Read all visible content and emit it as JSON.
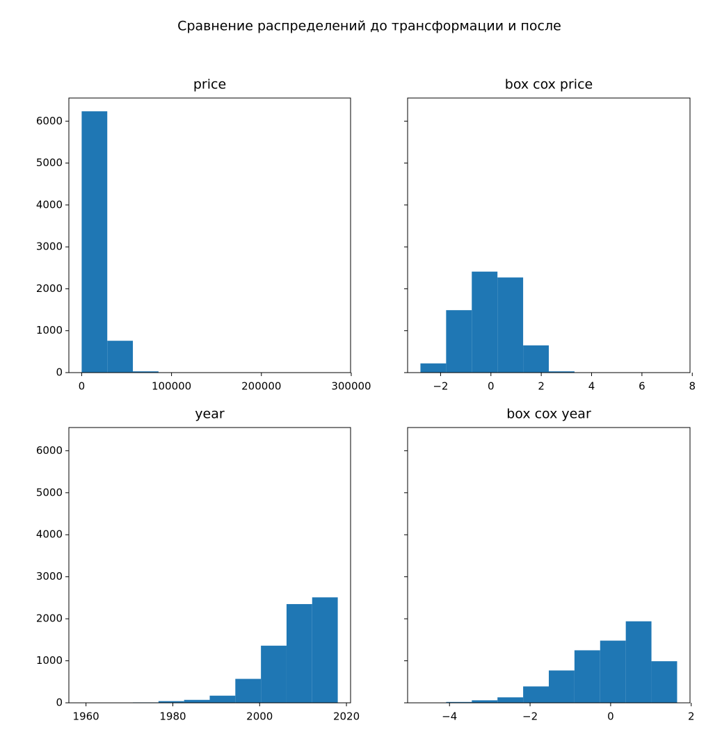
{
  "title": "Сравнение распределений до трансформации и после",
  "chart_data": [
    {
      "type": "histogram",
      "title": "price",
      "color": "#1f77b4",
      "bins": [
        0,
        28500,
        57000,
        85500,
        114000,
        142500,
        171000,
        199500,
        228000,
        256500,
        285000
      ],
      "values": [
        6235,
        760,
        30,
        5,
        2,
        1,
        0,
        0,
        0,
        1
      ],
      "xlim": [
        -14250,
        299250
      ],
      "ylim": [
        0,
        6552
      ],
      "xticks": [
        0,
        100000,
        200000,
        300000
      ],
      "yticks": [
        0,
        1000,
        2000,
        3000,
        4000,
        5000,
        6000
      ],
      "show_ytick_labels": true
    },
    {
      "type": "histogram",
      "title": "box cox price",
      "color": "#1f77b4",
      "bins": [
        -2.8,
        -1.78,
        -0.76,
        0.26,
        1.28,
        2.3,
        3.32,
        4.34,
        5.36,
        6.38,
        7.4
      ],
      "values": [
        220,
        1490,
        2410,
        2270,
        650,
        30,
        5,
        2,
        0,
        1
      ],
      "xlim": [
        -3.31,
        7.91
      ],
      "ylim": [
        0,
        6552
      ],
      "xticks": [
        {
          "value": -2,
          "label": "−2"
        },
        0,
        2,
        4,
        6,
        8
      ],
      "yticks": [
        0,
        1000,
        2000,
        3000,
        4000,
        5000,
        6000
      ],
      "show_ytick_labels": false
    },
    {
      "type": "histogram",
      "title": "year",
      "color": "#1f77b4",
      "bins": [
        1959,
        1964.9,
        1970.8,
        1976.7,
        1982.6,
        1988.5,
        1994.4,
        2000.3,
        2006.2,
        2012.1,
        2018
      ],
      "values": [
        5,
        5,
        10,
        40,
        70,
        170,
        570,
        1360,
        2350,
        2510
      ],
      "xlim": [
        1956.05,
        2020.95
      ],
      "ylim": [
        0,
        6552
      ],
      "xticks": [
        1960,
        1980,
        2000,
        2020
      ],
      "yticks": [
        0,
        1000,
        2000,
        3000,
        4000,
        5000,
        6000
      ],
      "show_ytick_labels": true
    },
    {
      "type": "histogram",
      "title": "box cox year",
      "color": "#1f77b4",
      "bins": [
        -4.72,
        -4.083,
        -3.446,
        -2.809,
        -2.172,
        -1.535,
        -0.898,
        -0.261,
        0.376,
        1.013,
        1.65
      ],
      "values": [
        2,
        20,
        60,
        130,
        390,
        770,
        1250,
        1480,
        1940,
        990
      ],
      "xlim": [
        -5.04,
        1.97
      ],
      "ylim": [
        0,
        6552
      ],
      "xticks": [
        {
          "value": -4,
          "label": "−4"
        },
        {
          "value": -2,
          "label": "−2"
        },
        0,
        2
      ],
      "yticks": [
        0,
        1000,
        2000,
        3000,
        4000,
        5000,
        6000
      ],
      "show_ytick_labels": false
    }
  ]
}
